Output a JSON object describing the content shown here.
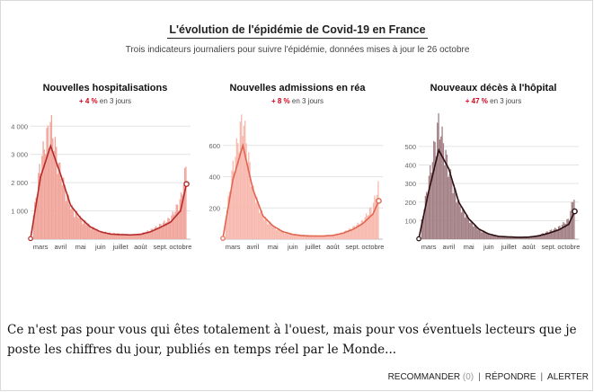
{
  "figure": {
    "title": "L'évolution de l'épidémie de Covid-19 en France",
    "subtitle": "Trois indicateurs journaliers pour suivre l'épidémie, données mises à jour le 26 octobre"
  },
  "chart_data": [
    {
      "type": "bar",
      "title": "Nouvelles hospitalisations",
      "change_pct": "+ 4 %",
      "change_suffix": " en 3 jours",
      "categories": [
        "mars",
        "avril",
        "mai",
        "juin",
        "juillet",
        "août",
        "sept.",
        "octobre"
      ],
      "yticks": [
        "1 000",
        "2 000",
        "3 000",
        "4 000"
      ],
      "ylim": [
        0,
        4200
      ],
      "bar_color": "#f0a49a",
      "line_color": "#b52b2b",
      "x": [
        0,
        0.5,
        1,
        1.5,
        2,
        2.5,
        3,
        3.5,
        4,
        4.5,
        5,
        5.5,
        6,
        6.5,
        7,
        7.5,
        7.8
      ],
      "daily": [
        30,
        2600,
        3900,
        2200,
        1100,
        700,
        420,
        260,
        200,
        180,
        150,
        180,
        300,
        480,
        700,
        1300,
        2500
      ],
      "trend": [
        20,
        2200,
        3300,
        2300,
        1200,
        750,
        430,
        260,
        180,
        160,
        150,
        170,
        260,
        420,
        600,
        1000,
        1950
      ]
    },
    {
      "type": "bar",
      "title": "Nouvelles admissions en réa",
      "change_pct": "+ 8 %",
      "change_suffix": " en 3 jours",
      "categories": [
        "mars",
        "avril",
        "mai",
        "juin",
        "juillet",
        "août",
        "sept.",
        "octobre"
      ],
      "yticks": [
        "200",
        "400",
        "600"
      ],
      "ylim": [
        0,
        760
      ],
      "bar_color": "#f7b8ae",
      "line_color": "#e2654f",
      "x": [
        0,
        0.5,
        1,
        1.5,
        2,
        2.5,
        3,
        3.5,
        4,
        4.5,
        5,
        5.5,
        6,
        6.5,
        7,
        7.5,
        7.8
      ],
      "daily": [
        5,
        430,
        740,
        300,
        140,
        80,
        45,
        30,
        25,
        22,
        20,
        25,
        40,
        70,
        110,
        200,
        330
      ],
      "trend": [
        5,
        380,
        600,
        320,
        150,
        85,
        48,
        30,
        22,
        20,
        20,
        24,
        38,
        62,
        100,
        160,
        245
      ]
    },
    {
      "type": "bar",
      "title": "Nouveaux décès à l'hôpital",
      "change_pct": "+ 47 %",
      "change_suffix": " en 3 jours",
      "categories": [
        "mars",
        "avril",
        "mai",
        "juin",
        "juillet",
        "août",
        "sept.",
        "octobre"
      ],
      "yticks": [
        "100",
        "200",
        "300",
        "400",
        "500"
      ],
      "ylim": [
        0,
        640
      ],
      "bar_color": "#a27f84",
      "line_color": "#2a0e12",
      "x": [
        0,
        0.5,
        1,
        1.5,
        2,
        2.5,
        3,
        3.5,
        4,
        4.5,
        5,
        5.5,
        6,
        6.5,
        7,
        7.5,
        7.8
      ],
      "daily": [
        2,
        300,
        600,
        350,
        180,
        100,
        50,
        25,
        15,
        12,
        10,
        10,
        20,
        40,
        60,
        100,
        240
      ],
      "trend": [
        2,
        260,
        480,
        380,
        200,
        110,
        55,
        28,
        15,
        12,
        10,
        11,
        18,
        32,
        50,
        80,
        150
      ]
    }
  ],
  "comment": {
    "text": "Ce n'est pas pour vous qui êtes totalement à l'ouest, mais pour vos éventuels lecteurs que je poste les chiffres du jour, publiés en temps réel par le Monde..."
  },
  "actions": {
    "recommend": "RECOMMANDER",
    "recommend_count": "(0)",
    "reply": "RÉPONDRE",
    "alert": "ALERTER",
    "separator": "|"
  }
}
